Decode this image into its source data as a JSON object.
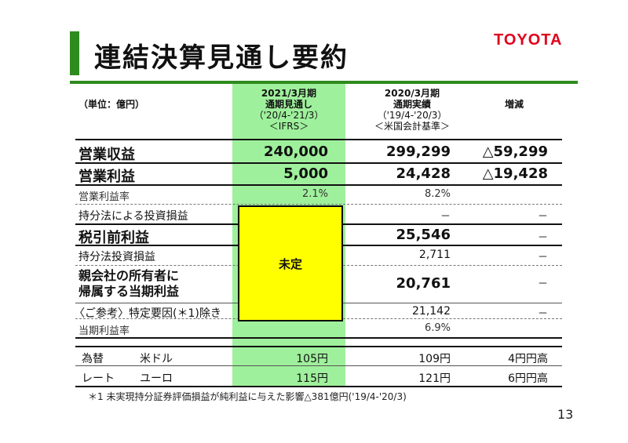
{
  "header": {
    "title": "連結決算見通し要約",
    "logo": "TOYOTA"
  },
  "table": {
    "unit": "（単位：億円）",
    "col_forecast": [
      "2021/3月期",
      "通期見通し",
      "（'20/4-'21/3）",
      "＜IFRS＞"
    ],
    "col_actual": [
      "2020/3月期",
      "通期実績",
      "（'19/4-'20/3）",
      "＜米国会計基準＞"
    ],
    "col_change": "増減",
    "rows": [
      {
        "label": "営業収益",
        "forecast": "240,000",
        "actual": "299,299",
        "change": "△59,299"
      },
      {
        "label": "営業利益",
        "forecast": "5,000",
        "actual": "24,428",
        "change": "△19,428"
      },
      {
        "label": "営業利益率",
        "forecast": "2.1%",
        "actual": "8.2%",
        "change": ""
      },
      {
        "label": "持分法による投資損益",
        "forecast": "",
        "actual": "－",
        "change": "－"
      },
      {
        "label": "税引前利益",
        "forecast": "",
        "actual": "25,546",
        "change": "－"
      },
      {
        "label": "持分法投資損益",
        "forecast": "",
        "actual": "2,711",
        "change": "－"
      },
      {
        "label": [
          "親会社の所有者に",
          "帰属する当期利益"
        ],
        "forecast": "",
        "actual": "20,761",
        "change": "－"
      },
      {
        "label": "〈ご参考〉特定要因(＊1)除き",
        "forecast": "",
        "actual": "21,142",
        "change": "－"
      },
      {
        "label": "当期利益率",
        "forecast": "",
        "actual": "6.9%",
        "change": ""
      }
    ],
    "undetermined": "未定",
    "fx": {
      "label1": "為替",
      "label2": "レート",
      "rows": [
        {
          "currency": "米ドル",
          "forecast": "105円",
          "actual": "109円",
          "change": "4円円高"
        },
        {
          "currency": "ユーロ",
          "forecast": "115円",
          "actual": "121円",
          "change": "6円円高"
        }
      ]
    }
  },
  "footnote": "＊1 未実現持分証券評価損益が純利益に与えた影響△381億円('19/4-'20/3)",
  "page_number": "13",
  "colors": {
    "accent_green": "#2e8b1e",
    "highlight_green": "#9ff09c",
    "logo_red": "#e0001b",
    "undetermined_yellow": "#ffff00"
  }
}
